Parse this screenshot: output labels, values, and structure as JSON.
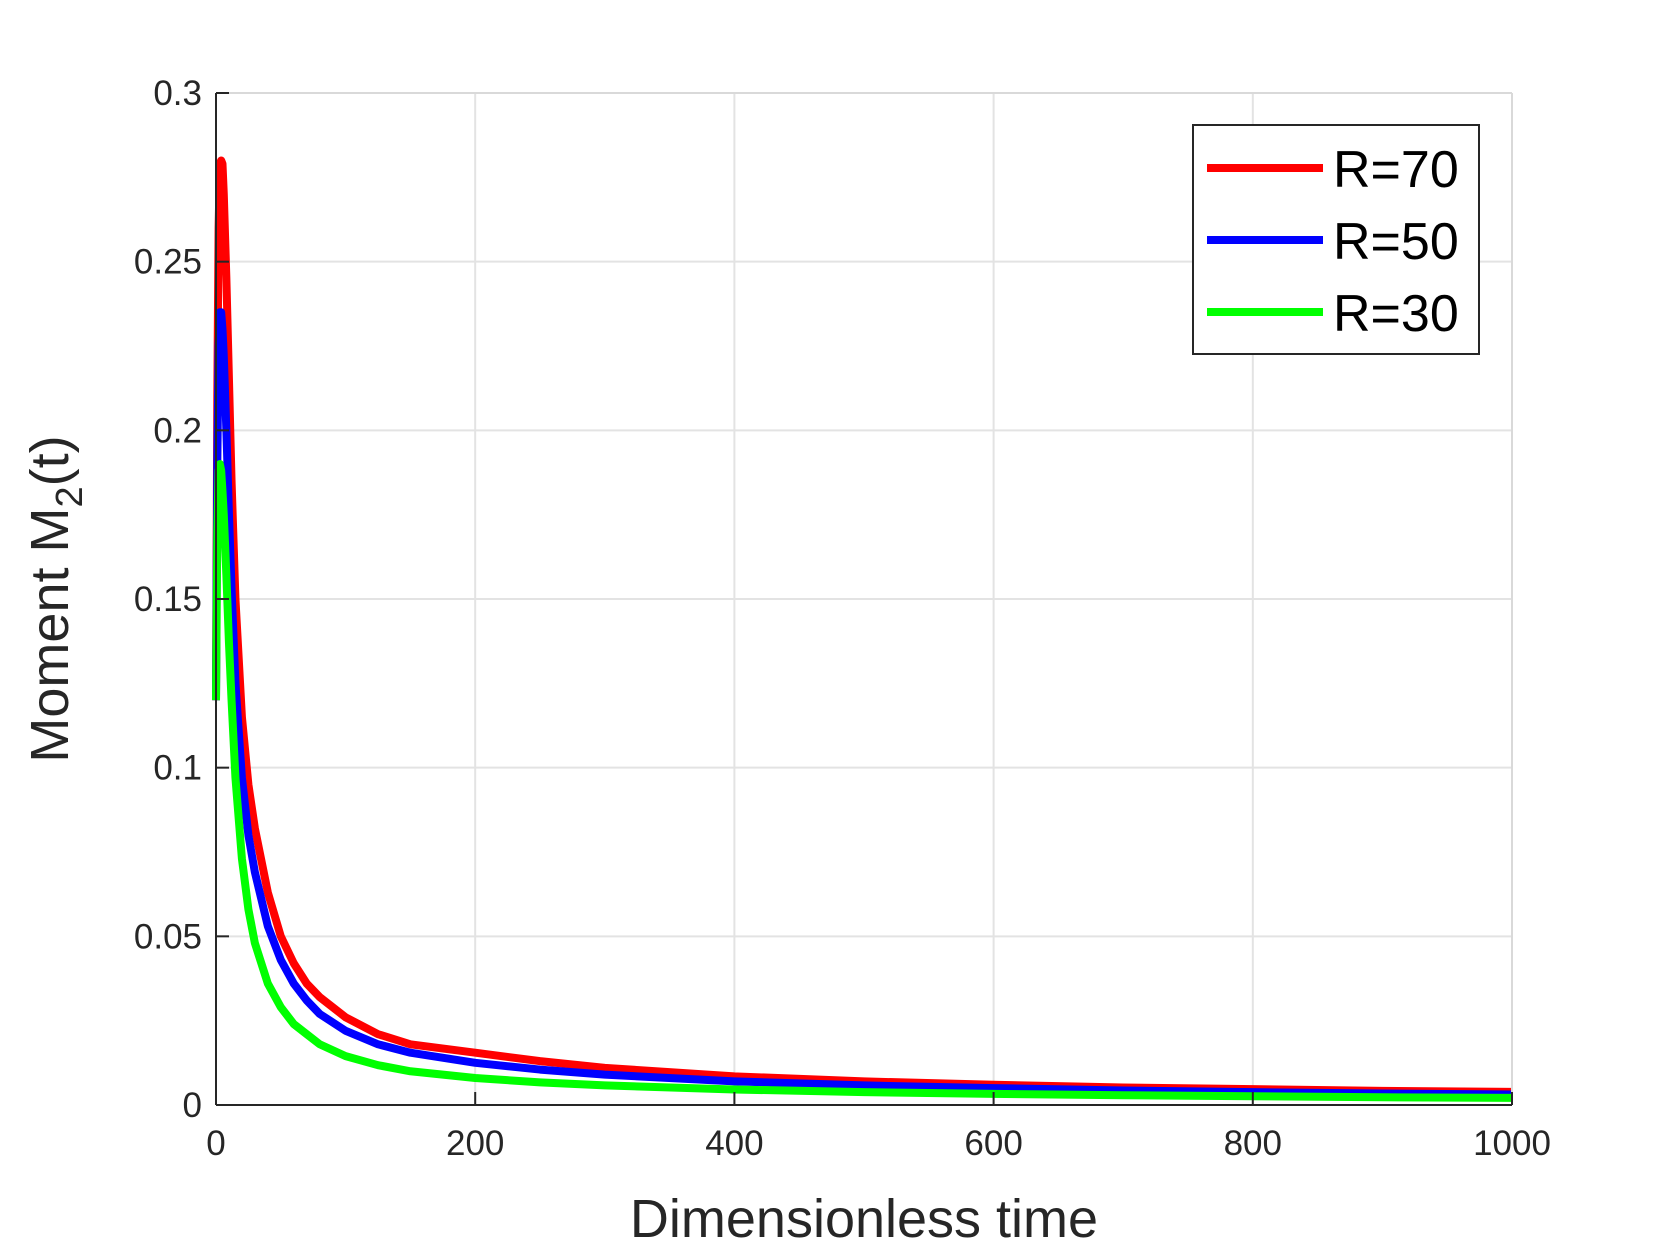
{
  "chart_data": {
    "type": "line",
    "title": "",
    "xlabel": "Dimensionless time",
    "ylabel": {
      "main": "Moment M",
      "subscript": "2",
      "suffix": "(t)"
    },
    "xlim": [
      0,
      1000
    ],
    "ylim": [
      0,
      0.3
    ],
    "xticks": [
      0,
      200,
      400,
      600,
      800,
      1000
    ],
    "xtick_labels": [
      "0",
      "200",
      "400",
      "600",
      "800",
      "1000"
    ],
    "yticks": [
      0,
      0.05,
      0.1,
      0.15,
      0.2,
      0.25,
      0.3
    ],
    "ytick_labels": [
      "0",
      "0.05",
      "0.1",
      "0.15",
      "0.2",
      "0.25",
      "0.3"
    ],
    "grid": true,
    "legend_position": "top-right",
    "series": [
      {
        "name": "R=70",
        "color": "#ff0000",
        "x": [
          0,
          1,
          2,
          3,
          4,
          5,
          6,
          8,
          10,
          12,
          15,
          20,
          25,
          30,
          40,
          50,
          60,
          70,
          80,
          100,
          125,
          150,
          200,
          250,
          300,
          400,
          500,
          600,
          700,
          800,
          900,
          1000
        ],
        "y": [
          0.12,
          0.21,
          0.26,
          0.279,
          0.28,
          0.279,
          0.27,
          0.245,
          0.215,
          0.185,
          0.15,
          0.115,
          0.095,
          0.082,
          0.063,
          0.05,
          0.042,
          0.036,
          0.032,
          0.026,
          0.021,
          0.018,
          0.0155,
          0.013,
          0.011,
          0.0085,
          0.007,
          0.006,
          0.0052,
          0.0047,
          0.0042,
          0.0039
        ]
      },
      {
        "name": "R=50",
        "color": "#0000ff",
        "x": [
          0,
          1,
          2,
          3,
          4,
          5,
          6,
          8,
          10,
          12,
          15,
          20,
          25,
          30,
          40,
          50,
          60,
          70,
          80,
          100,
          125,
          150,
          200,
          250,
          300,
          400,
          500,
          600,
          700,
          800,
          900,
          1000
        ],
        "y": [
          0.12,
          0.19,
          0.225,
          0.235,
          0.235,
          0.23,
          0.222,
          0.2,
          0.175,
          0.153,
          0.125,
          0.097,
          0.08,
          0.069,
          0.053,
          0.043,
          0.036,
          0.031,
          0.027,
          0.022,
          0.018,
          0.0155,
          0.0125,
          0.0105,
          0.009,
          0.007,
          0.0058,
          0.005,
          0.0043,
          0.0038,
          0.0034,
          0.0031
        ]
      },
      {
        "name": "R=30",
        "color": "#00ff00",
        "x": [
          0,
          1,
          2,
          3,
          4,
          5,
          6,
          8,
          10,
          12,
          15,
          20,
          25,
          30,
          40,
          50,
          60,
          70,
          80,
          100,
          125,
          150,
          200,
          250,
          300,
          400,
          500,
          600,
          700,
          800,
          900,
          1000
        ],
        "y": [
          0.12,
          0.17,
          0.188,
          0.19,
          0.188,
          0.182,
          0.175,
          0.157,
          0.137,
          0.12,
          0.097,
          0.073,
          0.058,
          0.048,
          0.036,
          0.029,
          0.024,
          0.021,
          0.018,
          0.0145,
          0.0118,
          0.01,
          0.008,
          0.0067,
          0.0058,
          0.0046,
          0.0038,
          0.0033,
          0.0029,
          0.0026,
          0.0023,
          0.0021
        ]
      }
    ]
  }
}
